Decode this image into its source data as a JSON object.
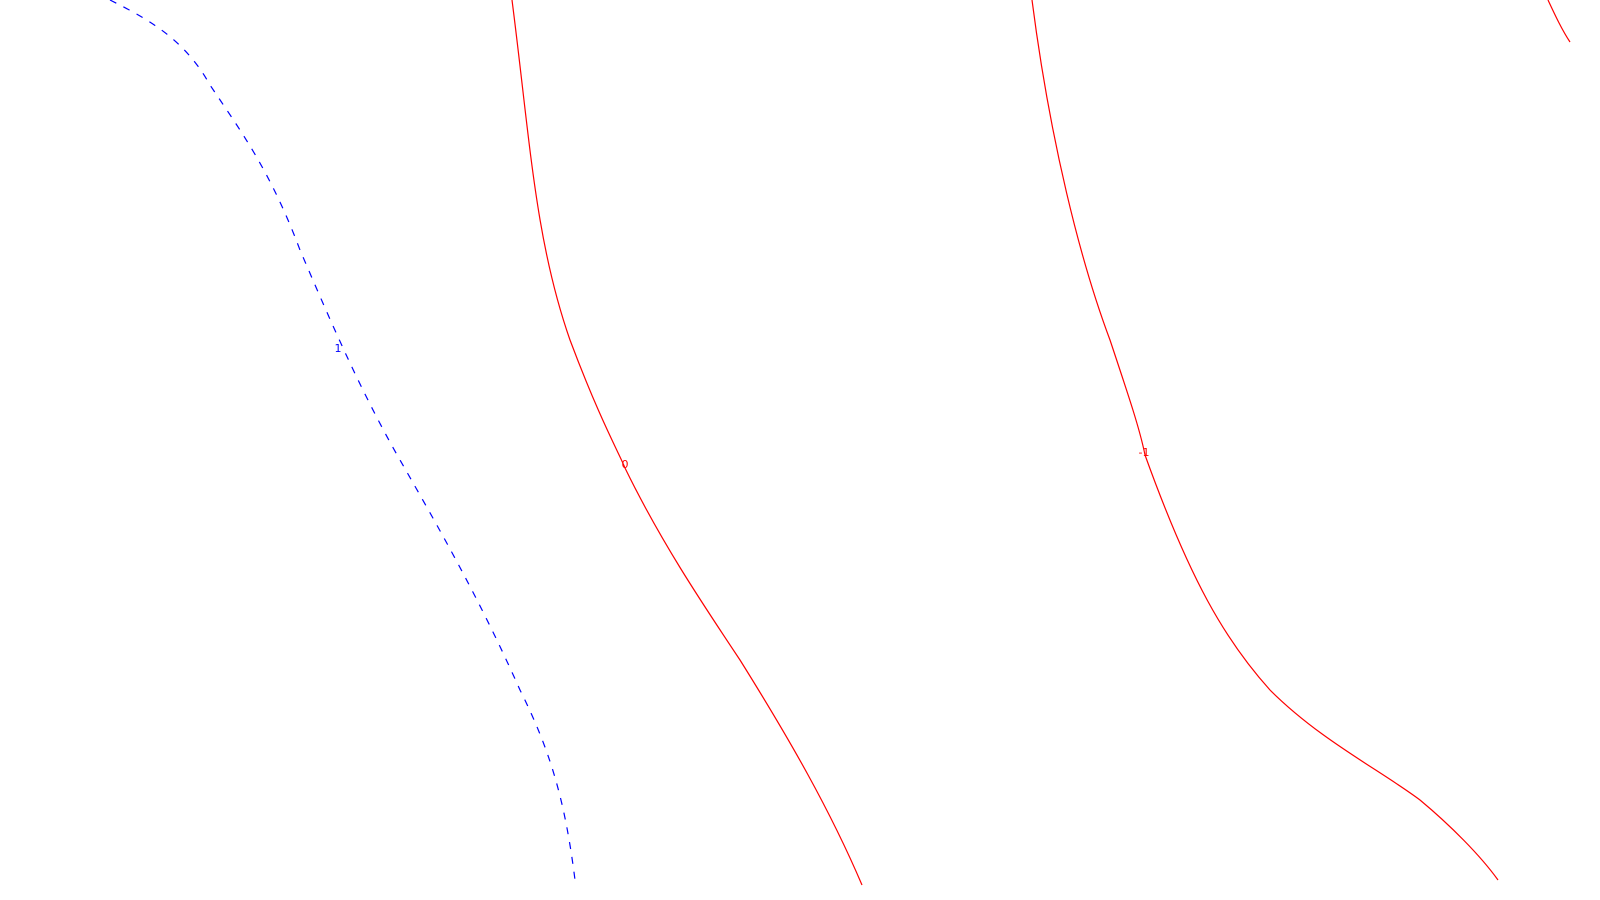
{
  "chart_data": {
    "type": "contour",
    "title": "",
    "xlabel": "",
    "ylabel": "",
    "grid": false,
    "levels": [
      {
        "label": "1",
        "color": "#0000ff",
        "style": "dashed"
      },
      {
        "label": "0",
        "color": "#ff0000",
        "style": "solid"
      },
      {
        "label": "-1",
        "color": "#ff0000",
        "style": "solid"
      },
      {
        "label": "",
        "color": "#ff0000",
        "style": "solid"
      }
    ]
  }
}
